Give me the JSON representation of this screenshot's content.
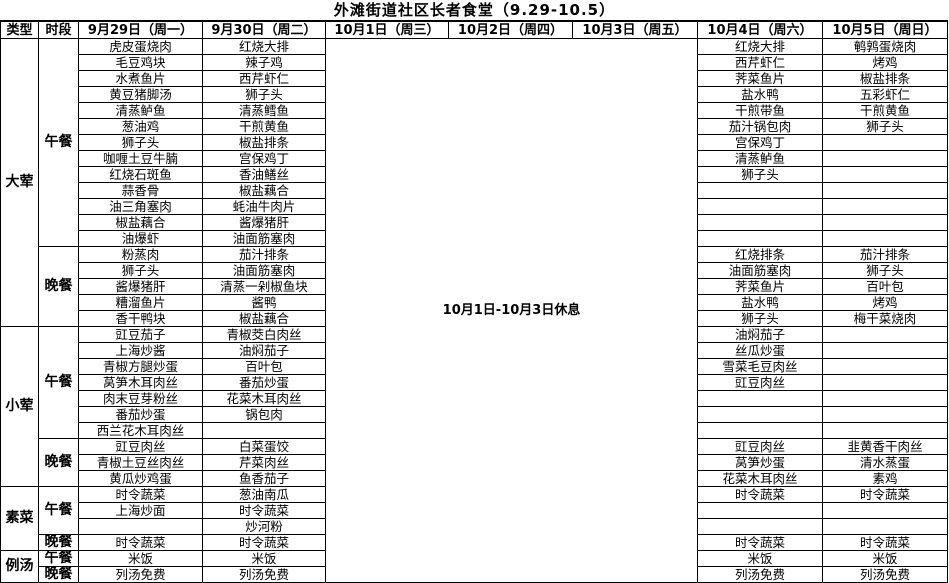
{
  "title": "外滩街道社区长者食堂（9.29-10.5）",
  "headers": [
    "类型",
    "时段",
    "9月29日（周一）",
    "9月30日（周二）",
    "10月1日（周三）",
    "10月2日（周四）",
    "10月3日（周五）",
    "10月4日（周六）",
    "10月5日（周日）"
  ],
  "rest_notice": "10月1日-10月3日休息",
  "sections": [
    {
      "type": "大荤",
      "periods": [
        {
          "name": "午餐",
          "rows": [
            [
              "虎皮蛋烧肉",
              "红烧大排",
              "红烧大排",
              "鹌鹑蛋烧肉"
            ],
            [
              "毛豆鸡块",
              "辣子鸡",
              "西芹虾仁",
              "烤鸡"
            ],
            [
              "水煮鱼片",
              "西芹虾仁",
              "荠菜鱼片",
              "椒盐排条"
            ],
            [
              "黄豆猪脚汤",
              "狮子头",
              "盐水鸭",
              "五彩虾仁"
            ],
            [
              "清蒸鲈鱼",
              "清蒸鳕鱼",
              "干煎带鱼",
              "干煎黄鱼"
            ],
            [
              "葱油鸡",
              "干煎黄鱼",
              "茄汁锅包肉",
              "狮子头"
            ],
            [
              "狮子头",
              "椒盐排条",
              "宫保鸡丁",
              ""
            ],
            [
              "咖喱土豆牛腩",
              "宫保鸡丁",
              "清蒸鲈鱼",
              ""
            ],
            [
              "红烧石斑鱼",
              "香油鳝丝",
              "狮子头",
              ""
            ],
            [
              "蒜香骨",
              "椒盐藕合",
              "",
              ""
            ],
            [
              "油三角塞肉",
              "蚝油牛肉片",
              "",
              ""
            ],
            [
              "椒盐藕合",
              "酱爆猪肝",
              "",
              ""
            ],
            [
              "油爆虾",
              "油面筋塞肉",
              "",
              ""
            ]
          ]
        },
        {
          "name": "晚餐",
          "rows": [
            [
              "粉蒸肉",
              "茄汁排条",
              "红烧排条",
              "茄汁排条"
            ],
            [
              "狮子头",
              "油面筋塞肉",
              "油面筋塞肉",
              "狮子头"
            ],
            [
              "酱爆猪肝",
              "清蒸一剁椒鱼块",
              "荠菜鱼片",
              "百叶包"
            ],
            [
              "糟溜鱼片",
              "酱鸭",
              "盐水鸭",
              "烤鸡"
            ],
            [
              "香干鸭块",
              "椒盐藕合",
              "狮子头",
              "梅干菜烧肉"
            ]
          ]
        }
      ]
    },
    {
      "type": "小荤",
      "periods": [
        {
          "name": "午餐",
          "rows": [
            [
              "豇豆茄子",
              "青椒茭白肉丝",
              "油焖茄子",
              ""
            ],
            [
              "上海炒酱",
              "油焖茄子",
              "丝瓜炒蛋",
              ""
            ],
            [
              "青椒方腿炒蛋",
              "百叶包",
              "雪菜毛豆肉丝",
              ""
            ],
            [
              "莴笋木耳肉丝",
              "番茄炒蛋",
              "豇豆肉丝",
              ""
            ],
            [
              "肉末豆芽粉丝",
              "花菜木耳肉丝",
              "",
              ""
            ],
            [
              "番茄炒蛋",
              "锅包肉",
              "",
              ""
            ],
            [
              "西兰花木耳肉丝",
              "",
              "",
              ""
            ]
          ]
        },
        {
          "name": "晚餐",
          "rows": [
            [
              "豇豆肉丝",
              "白菜蛋饺",
              "豇豆肉丝",
              "韭黄香干肉丝"
            ],
            [
              "青椒土豆丝肉丝",
              "芹菜肉丝",
              "莴笋炒蛋",
              "清水蒸蛋"
            ],
            [
              "黄瓜炒鸡蛋",
              "鱼香茄子",
              "花菜木耳肉丝",
              "素鸡"
            ]
          ]
        }
      ]
    },
    {
      "type": "素菜",
      "periods": [
        {
          "name": "午餐",
          "rows": [
            [
              "时令蔬菜",
              "葱油南瓜",
              "时令蔬菜",
              "时令蔬菜"
            ],
            [
              "上海炒面",
              "时令蔬菜",
              "",
              ""
            ],
            [
              "",
              "炒河粉",
              "",
              ""
            ]
          ]
        },
        {
          "name": "晚餐",
          "rows": [
            [
              "时令蔬菜",
              "时令蔬菜",
              "时令蔬菜",
              "时令蔬菜"
            ]
          ]
        }
      ]
    },
    {
      "type": "例汤",
      "periods": [
        {
          "name": "午餐",
          "rows": [
            [
              "米饭",
              "米饭",
              "米饭",
              "米饭"
            ]
          ]
        },
        {
          "name": "晚餐",
          "rows": [
            [
              "列汤免费",
              "列汤免费",
              "列汤免费",
              "列汤免费"
            ]
          ]
        }
      ]
    }
  ]
}
